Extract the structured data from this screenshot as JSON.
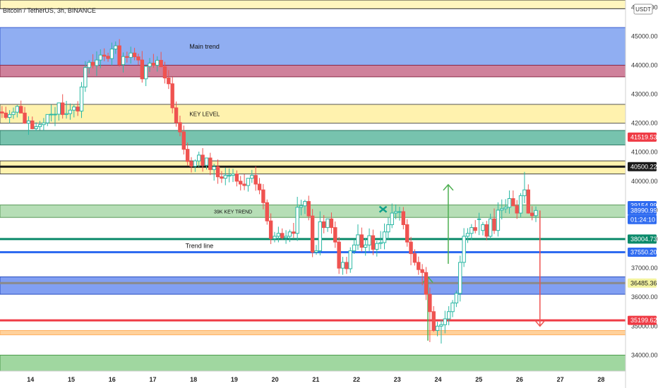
{
  "symbol": "Bitcoin / TetherUS, 3h, BINANCE",
  "currency_button": "USDT",
  "chart_data": {
    "type": "candlestick",
    "ylim": [
      33450,
      46250
    ],
    "y_ticks": [
      34000,
      35000,
      36000,
      37000,
      38000,
      39000,
      40000,
      41000,
      42000,
      43000,
      44000,
      45000,
      46000
    ],
    "y_tick_labels": [
      "34000.00",
      "35000.00",
      "36000.00",
      "37000.00",
      "38000.00",
      "39000.00",
      "40000.00",
      "41000.00",
      "42000.00",
      "43000.00",
      "44000.00",
      "45000.00",
      "46000.00"
    ],
    "x_ticks": [
      14,
      15,
      16,
      17,
      18,
      19,
      20,
      21,
      22,
      23,
      24,
      25,
      26,
      27,
      28
    ],
    "x_tick_labels": [
      "14",
      "15",
      "16",
      "17",
      "18",
      "19",
      "20",
      "21",
      "22",
      "23",
      "24",
      "25",
      "26",
      "27",
      "28"
    ],
    "xlim": [
      13.25,
      28.6
    ],
    "up_color": "#2bb8a4",
    "down_color": "#ef5350",
    "zones": [
      {
        "label": "",
        "top": 46400,
        "bottom": 45950,
        "color": "#fff4b3",
        "border": "#2b2b2b"
      },
      {
        "label": "Main trend",
        "top": 45300,
        "bottom": 44000,
        "color": "#7da0f0",
        "border": "#3a5fd0"
      },
      {
        "label": "",
        "top": 44000,
        "bottom": 43600,
        "color": "#c76b8a",
        "border": "#8a2b4a"
      },
      {
        "label": "KEY LEVEL",
        "top": 42650,
        "bottom": 42000,
        "color": "#fff0a0",
        "border": "#555555"
      },
      {
        "label": "",
        "top": 41750,
        "bottom": 41250,
        "color": "#5fb8a0",
        "border": "#2f7a66"
      },
      {
        "label": "",
        "top": 40700,
        "bottom": 40250,
        "color": "#fff0a0",
        "border": "#444444"
      },
      {
        "label": "39K KEY TREND",
        "top": 39180,
        "bottom": 38750,
        "color": "#a9d8a9",
        "border": "#5b9b5b"
      },
      {
        "label": "",
        "top": 36700,
        "bottom": 36100,
        "color": "#6b8ef0",
        "border": "#2a4fc0"
      },
      {
        "label": "",
        "top": 34850,
        "bottom": 34700,
        "color": "#ffc98a",
        "border": "#ffb060"
      },
      {
        "label": "",
        "top": 34000,
        "bottom": 33300,
        "color": "#8fd08f",
        "border": "#4a9a4a"
      }
    ],
    "levels": [
      {
        "price": 41519.53,
        "label": "41519.53",
        "color": "#ef3b45",
        "line": false
      },
      {
        "price": 40500.22,
        "label": "40500.22",
        "color": "#1a1a1a",
        "line": true
      },
      {
        "price": 39154.99,
        "label": "39154.99",
        "color": "#2f6bf0",
        "line": false
      },
      {
        "price": 38990.99,
        "label": "38990.99",
        "color": "#2f6bf0",
        "line": false
      },
      {
        "price": 38004.73,
        "label": "38004.73",
        "color": "#0b8a6a",
        "line": true
      },
      {
        "price": 37550.2,
        "label": "37550.20",
        "color": "#2f6bf0",
        "line": true
      },
      {
        "price": 36485.36,
        "label": "36485.36",
        "color": "#f3f3a0",
        "line": true
      },
      {
        "price": 35199.62,
        "label": "35199.62",
        "color": "#ef3b45",
        "line": true
      }
    ],
    "countdown": "01:24:10",
    "annotations": [
      {
        "text": "Trend line",
        "x": 17.8,
        "y": 37700
      }
    ],
    "candles_open": [
      42390,
      42350,
      42200,
      42300,
      42380,
      42580,
      42350,
      42000,
      42080,
      41810,
      41880,
      41950,
      42010,
      42300,
      42310,
      42310,
      42700,
      42300,
      42330,
      42450,
      42560,
      42420,
      43250,
      43920,
      44100,
      43990,
      44180,
      44350,
      44310,
      44230,
      44560,
      44670,
      44020,
      44300,
      44270,
      44420,
      44290,
      44180,
      43530,
      43960,
      44070,
      44000,
      44170,
      43950,
      43560,
      43360,
      42530,
      42020,
      41700,
      41100,
      40680,
      40520,
      40700,
      40900,
      40550,
      40800,
      40400,
      40500,
      40150,
      40100,
      40200,
      40200,
      40250,
      40000,
      39900,
      39850,
      40100,
      40200,
      39900,
      39700,
      39260,
      38630,
      38020,
      38100,
      38200,
      38050,
      38100,
      38250,
      38200,
      39100,
      39150,
      39300,
      38800,
      37550,
      37600,
      38600,
      38400,
      38700,
      38400,
      37900,
      37000,
      37200,
      36980,
      37600,
      37800,
      38150,
      37720,
      37800,
      38120,
      37650,
      37850,
      37880,
      38250,
      38500,
      38900,
      38950,
      38950,
      38500,
      37900,
      37500,
      37200,
      36950,
      36850,
      36100,
      35500,
      34850,
      35000,
      35050,
      35250,
      35500,
      35800,
      36130,
      37200,
      38100,
      38200,
      38400,
      38700,
      38300,
      38500,
      38100,
      38700,
      38300,
      39000,
      39050,
      39100,
      39400,
      39150,
      38900,
      39500,
      39700,
      38900,
      38810
    ],
    "candles_high": [
      42590,
      42570,
      42450,
      42540,
      42630,
      42780,
      42560,
      42240,
      42230,
      42030,
      42080,
      42180,
      42150,
      42640,
      42560,
      42530,
      43000,
      42770,
      42680,
      42660,
      42760,
      43420,
      44140,
      44180,
      44380,
      44480,
      44550,
      44580,
      44430,
      44780,
      44820,
      44900,
      44440,
      44470,
      44640,
      44600,
      44400,
      44490,
      43980,
      44250,
      44390,
      44310,
      44460,
      44120,
      43830,
      43600,
      42750,
      42260,
      41920,
      41330,
      40830,
      40750,
      41020,
      41140,
      40790,
      40980,
      40600,
      40750,
      40350,
      40470,
      40440,
      40430,
      40370,
      40180,
      40240,
      40050,
      40390,
      40510,
      40110,
      39900,
      39370,
      38890,
      38250,
      38430,
      38370,
      38310,
      38330,
      38560,
      39460,
      39360,
      39360,
      39500,
      39040,
      37800,
      38960,
      38830,
      38640,
      38920,
      38610,
      38070,
      37390,
      37390,
      37720,
      37990,
      38510,
      38400,
      38030,
      38370,
      38330,
      37940,
      38280,
      38540,
      38760,
      39230,
      39200,
      39120,
      39110,
      38690,
      38080,
      37650,
      37400,
      37140,
      37040,
      36330,
      35690,
      35150,
      35220,
      35530,
      35690,
      35900,
      36230,
      37430,
      38380,
      38380,
      38520,
      38660,
      38910,
      38590,
      38630,
      38880,
      39060,
      39270,
      39370,
      39380,
      39680,
      39680,
      39350,
      39590,
      40320,
      39890,
      39140,
      39130
    ],
    "candles_low": [
      42180,
      42140,
      42000,
      42150,
      42200,
      42380,
      41980,
      41600,
      41790,
      41730,
      41760,
      41750,
      41900,
      42060,
      41900,
      42090,
      42160,
      42160,
      42120,
      42200,
      42250,
      42180,
      43080,
      43710,
      43890,
      43630,
      43900,
      44140,
      44120,
      44000,
      44390,
      43950,
      43750,
      44090,
      44060,
      44170,
      44010,
      43400,
      43280,
      43770,
      43910,
      43780,
      43930,
      43370,
      43180,
      42340,
      41880,
      41550,
      40920,
      40530,
      40300,
      40320,
      40480,
      40330,
      40400,
      40210,
      40020,
      39910,
      39940,
      39860,
      39960,
      39970,
      39820,
      39680,
      39690,
      39640,
      39940,
      39670,
      39550,
      39030,
      38500,
      37830,
      37890,
      37890,
      37990,
      37840,
      37900,
      38050,
      37940,
      38820,
      38870,
      38650,
      37380,
      37460,
      37440,
      38200,
      38250,
      38190,
      37700,
      36800,
      36770,
      36800,
      36840,
      37490,
      37630,
      37570,
      37430,
      37590,
      37450,
      37400,
      37660,
      37650,
      37990,
      38380,
      38690,
      38640,
      38340,
      37740,
      37100,
      37090,
      36770,
      36410,
      35900,
      34450,
      34800,
      34650,
      34400,
      34750,
      35030,
      35310,
      35660,
      35850,
      37040,
      37870,
      37970,
      38200,
      38140,
      38130,
      37960,
      38050,
      38180,
      38090,
      38680,
      38900,
      38880,
      39140,
      38700,
      38760,
      39240,
      38880,
      38650,
      38590
    ],
    "candles_close": [
      42350,
      42200,
      42300,
      42380,
      42580,
      42350,
      42000,
      42080,
      41810,
      41880,
      41950,
      42010,
      42300,
      42310,
      42310,
      42700,
      42300,
      42330,
      42450,
      42560,
      42420,
      43250,
      43920,
      44100,
      43990,
      44180,
      44350,
      44310,
      44230,
      44560,
      44670,
      44020,
      44300,
      44270,
      44420,
      44290,
      44180,
      43530,
      43960,
      44070,
      44000,
      44170,
      43950,
      43560,
      43360,
      42530,
      42020,
      41700,
      41100,
      40680,
      40520,
      40700,
      40900,
      40550,
      40800,
      40400,
      40500,
      40150,
      40100,
      40200,
      40200,
      40250,
      40000,
      39900,
      39850,
      40100,
      40200,
      39900,
      39700,
      39260,
      38630,
      38020,
      38100,
      38200,
      38050,
      38100,
      38250,
      38200,
      39100,
      39150,
      39300,
      38800,
      37550,
      37600,
      38600,
      38400,
      38700,
      38400,
      37900,
      37000,
      37200,
      36980,
      37600,
      37800,
      38150,
      37720,
      37800,
      38120,
      37650,
      37850,
      37880,
      38250,
      38500,
      38900,
      38950,
      38950,
      38500,
      37900,
      37500,
      37200,
      36950,
      36850,
      36100,
      35500,
      34850,
      35000,
      35050,
      35250,
      35500,
      35800,
      36130,
      37200,
      38100,
      38200,
      38400,
      38300,
      38700,
      38500,
      38100,
      38700,
      38300,
      39000,
      39050,
      39100,
      39400,
      39150,
      38900,
      39500,
      39700,
      38900,
      38810,
      38990
    ]
  }
}
